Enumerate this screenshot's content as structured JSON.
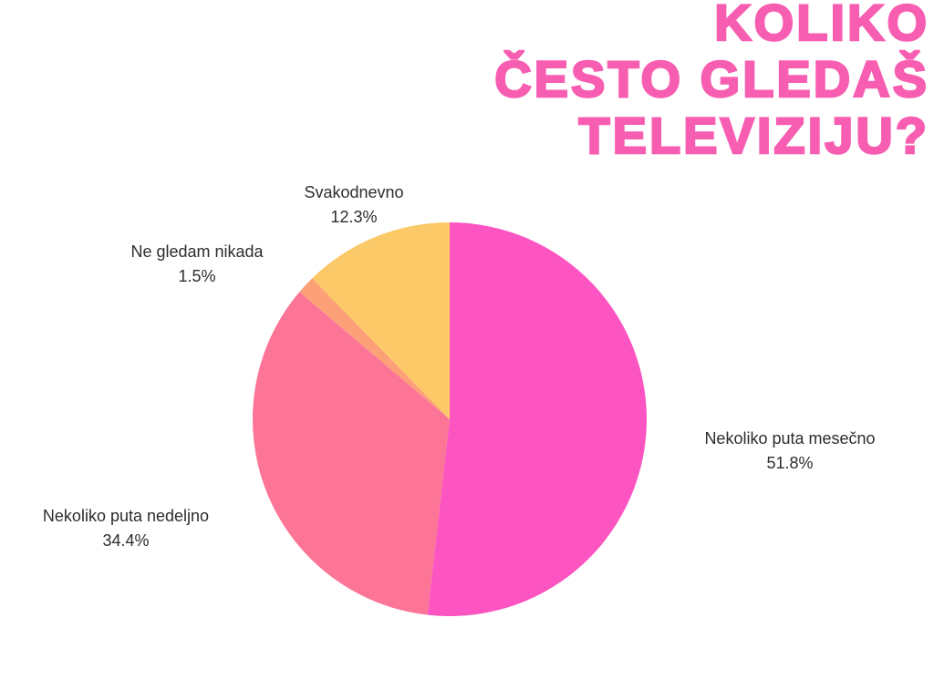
{
  "page": {
    "background_color": "#FFFFFF"
  },
  "title": {
    "text": "KOLIKO\nČESTO GLEDAŠ\nTELEVIZIJU?",
    "color": "#F75EB2"
  },
  "chart_data": {
    "type": "pie",
    "title": "KOLIKO ČESTO GLEDAŠ TELEVIZIJU?",
    "start_angle_deg": 0,
    "direction": "clockwise",
    "legend": "none",
    "label_style": "outside-callout",
    "slices": [
      {
        "label": "Nekoliko puta mesečno",
        "value": 51.8,
        "pct_label": "51.8%",
        "color": "#FC54C1"
      },
      {
        "label": "Nekoliko puta nedeljno",
        "value": 34.4,
        "pct_label": "34.4%",
        "color": "#FC7596"
      },
      {
        "label": "Ne gledam nikada",
        "value": 1.5,
        "pct_label": "1.5%",
        "color": "#FCA077"
      },
      {
        "label": "Svakodnevno",
        "value": 12.3,
        "pct_label": "12.3%",
        "color": "#FCC968"
      }
    ]
  }
}
